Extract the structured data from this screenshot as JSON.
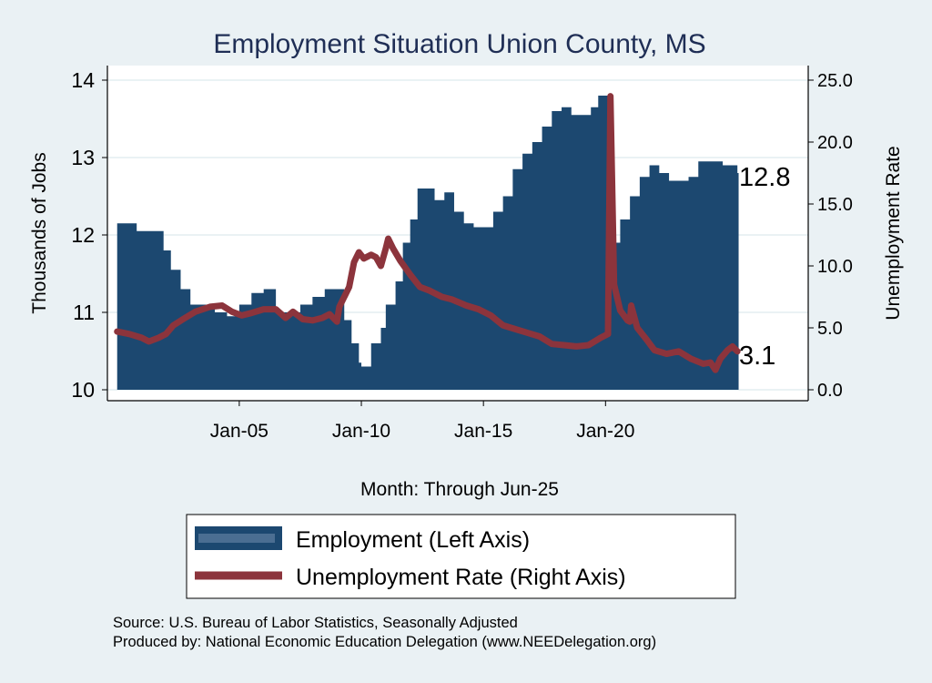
{
  "colors": {
    "employment": "#1c4870",
    "unemployment": "#8c343c",
    "title": "#1f2e55",
    "background": "#eaf1f4"
  },
  "chart_data": {
    "type": "area+line",
    "title": "Employment Situation Union  County, MS",
    "xlabel": "Month: Through Jun-25",
    "ylabel_left": "Thousands of Jobs",
    "ylabel_right": "Unemployment Rate",
    "xlim": [
      1999.6,
      2028.3
    ],
    "ylim_left": [
      10,
      14
    ],
    "ylim_right": [
      0,
      25
    ],
    "x_ticks": [
      {
        "value": 2005,
        "label": "Jan-05"
      },
      {
        "value": 2010,
        "label": "Jan-10"
      },
      {
        "value": 2015,
        "label": "Jan-15"
      },
      {
        "value": 2020,
        "label": "Jan-20"
      }
    ],
    "y_ticks_left": [
      {
        "value": 10,
        "label": "10"
      },
      {
        "value": 11,
        "label": "11"
      },
      {
        "value": 12,
        "label": "12"
      },
      {
        "value": 13,
        "label": "13"
      },
      {
        "value": 14,
        "label": "14"
      }
    ],
    "y_ticks_right": [
      {
        "value": 0,
        "label": "0.0"
      },
      {
        "value": 5,
        "label": "5.0"
      },
      {
        "value": 10,
        "label": "10.0"
      },
      {
        "value": 15,
        "label": "15.0"
      },
      {
        "value": 20,
        "label": "20.0"
      },
      {
        "value": 25,
        "label": "25.0"
      }
    ],
    "grid": true,
    "legend_placement": "bottom",
    "series": [
      {
        "name": "Employment (Left Axis)",
        "type": "area",
        "axis": "left",
        "x": [
          2000.0,
          2000.5,
          2000.8,
          2001.5,
          2001.9,
          2002.2,
          2002.6,
          2003.0,
          2003.5,
          2004.0,
          2004.5,
          2005.0,
          2005.5,
          2006.0,
          2006.5,
          2007.0,
          2007.5,
          2008.0,
          2008.5,
          2009.0,
          2009.3,
          2009.6,
          2009.9,
          2010.0,
          2010.4,
          2010.8,
          2011.0,
          2011.4,
          2011.7,
          2012.0,
          2012.3,
          2012.7,
          2013.0,
          2013.4,
          2013.8,
          2014.2,
          2014.6,
          2015.0,
          2015.4,
          2015.8,
          2016.2,
          2016.6,
          2017.0,
          2017.4,
          2017.8,
          2018.2,
          2018.6,
          2019.0,
          2019.4,
          2019.7,
          2020.2,
          2020.25,
          2020.6,
          2021.0,
          2021.4,
          2021.8,
          2022.2,
          2022.6,
          2023.0,
          2023.4,
          2023.8,
          2024.4,
          2024.8,
          2025.4
        ],
        "y": [
          12.15,
          12.15,
          12.05,
          12.05,
          11.8,
          11.55,
          11.3,
          11.1,
          11.1,
          11.0,
          10.95,
          11.1,
          11.25,
          11.3,
          11.0,
          11.0,
          11.1,
          11.2,
          11.3,
          11.3,
          10.9,
          10.6,
          10.35,
          10.3,
          10.6,
          10.8,
          11.1,
          11.4,
          11.9,
          12.2,
          12.6,
          12.6,
          12.45,
          12.55,
          12.3,
          12.15,
          12.1,
          12.1,
          12.3,
          12.5,
          12.85,
          13.05,
          13.2,
          13.4,
          13.6,
          13.65,
          13.55,
          13.55,
          13.65,
          13.8,
          13.8,
          11.9,
          12.2,
          12.5,
          12.75,
          12.9,
          12.8,
          12.7,
          12.7,
          12.75,
          12.95,
          12.95,
          12.9,
          12.8
        ],
        "last_label": "12.8"
      },
      {
        "name": "Unemployment Rate (Right Axis)",
        "type": "line",
        "axis": "right",
        "x": [
          2000.0,
          2000.5,
          2001.0,
          2001.3,
          2001.7,
          2002.0,
          2002.3,
          2002.7,
          2003.2,
          2003.8,
          2004.3,
          2004.7,
          2005.1,
          2005.5,
          2006.0,
          2006.5,
          2006.9,
          2007.2,
          2007.6,
          2008.0,
          2008.4,
          2008.7,
          2009.0,
          2009.1,
          2009.5,
          2009.7,
          2009.9,
          2010.1,
          2010.4,
          2010.6,
          2010.8,
          2011.0,
          2011.1,
          2011.3,
          2011.6,
          2012.0,
          2012.4,
          2012.8,
          2013.3,
          2013.7,
          2014.3,
          2014.8,
          2015.3,
          2015.8,
          2016.3,
          2016.8,
          2017.3,
          2017.8,
          2018.3,
          2018.8,
          2019.3,
          2019.8,
          2020.1,
          2020.2,
          2020.35,
          2020.6,
          2020.9,
          2021.0,
          2021.05,
          2021.3,
          2021.7,
          2022.0,
          2022.5,
          2023.0,
          2023.5,
          2024.0,
          2024.3,
          2024.5,
          2024.7,
          2025.0,
          2025.2,
          2025.4
        ],
        "y": [
          4.7,
          4.5,
          4.2,
          3.9,
          4.2,
          4.5,
          5.2,
          5.7,
          6.3,
          6.7,
          6.8,
          6.3,
          6.0,
          6.2,
          6.5,
          6.5,
          5.8,
          6.3,
          5.7,
          5.6,
          5.8,
          6.1,
          5.5,
          6.7,
          8.3,
          10.3,
          11.1,
          10.6,
          10.9,
          10.7,
          10.0,
          11.4,
          12.2,
          11.4,
          10.4,
          9.3,
          8.3,
          8.0,
          7.5,
          7.3,
          6.8,
          6.5,
          6.0,
          5.2,
          4.9,
          4.6,
          4.3,
          3.7,
          3.6,
          3.5,
          3.6,
          4.2,
          4.5,
          23.7,
          8.5,
          6.4,
          5.6,
          5.5,
          6.8,
          5.0,
          4.0,
          3.2,
          2.9,
          3.1,
          2.5,
          2.1,
          2.2,
          1.6,
          2.5,
          3.2,
          3.5,
          3.1
        ],
        "last_label": "3.1"
      }
    ]
  },
  "legend": {
    "items": [
      "Employment (Left Axis)",
      "Unemployment Rate (Right Axis)"
    ]
  },
  "footer": {
    "source": "Source: U.S. Bureau of Labor Statistics, Seasonally Adjusted",
    "produced_by": "Produced by: National Economic Education Delegation (www.NEEDelegation.org)"
  }
}
